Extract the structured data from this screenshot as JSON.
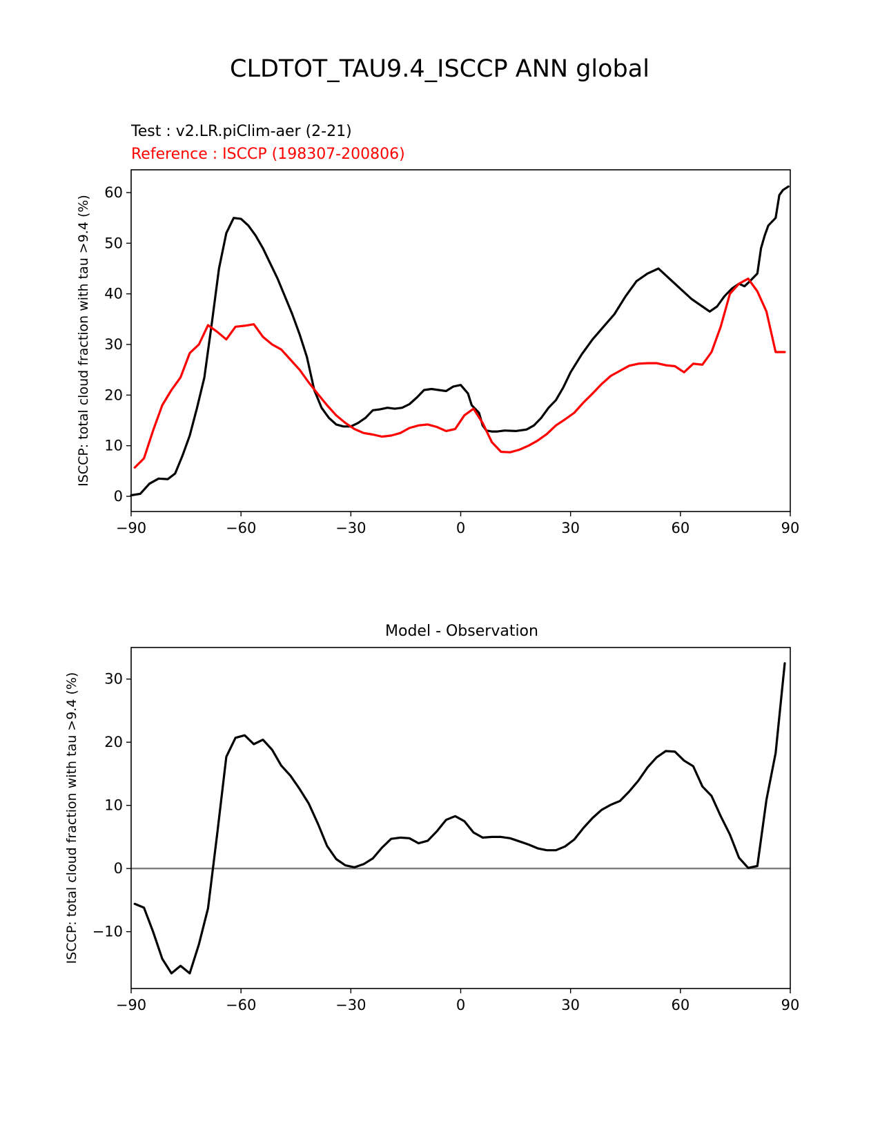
{
  "figure": {
    "title": "CLDTOT_TAU9.4_ISCCP ANN global"
  },
  "chart_data": [
    {
      "type": "line",
      "test_label": "Test : v2.LR.piClim-aer (2-21)",
      "reference_label": "Reference : ISCCP (198307-200806)",
      "title": "",
      "xlabel": "",
      "ylabel": "ISCCP: total cloud fraction with tau >9.4 (%)",
      "xlim": [
        -90,
        90
      ],
      "ylim": [
        -3,
        64.5
      ],
      "xticks": [
        -90,
        -60,
        -30,
        0,
        30,
        60,
        90
      ],
      "xtick_labels": [
        "−90",
        "−60",
        "−30",
        "0",
        "30",
        "60",
        "90"
      ],
      "yticks": [
        0,
        10,
        20,
        30,
        40,
        50,
        60
      ],
      "ytick_labels": [
        "0",
        "10",
        "20",
        "30",
        "40",
        "50",
        "60"
      ],
      "grid": false,
      "colors": {
        "test": "#000000",
        "reference": "#ff0000"
      },
      "series": [
        {
          "key": "test",
          "color": "#000000",
          "x": [
            -90,
            -87.5,
            -85,
            -82.5,
            -80,
            -78,
            -76,
            -74,
            -72,
            -70,
            -68,
            -66,
            -64,
            -62,
            -60,
            -58,
            -56,
            -54,
            -52,
            -50,
            -48,
            -46,
            -44,
            -42,
            -40,
            -38,
            -36,
            -34,
            -32,
            -30,
            -28,
            -26,
            -24,
            -22,
            -20,
            -18,
            -16,
            -14,
            -12,
            -10,
            -8,
            -6,
            -4,
            -2,
            0,
            2,
            3,
            5,
            6,
            7,
            8.5,
            10,
            12,
            15,
            18,
            20,
            22,
            24,
            26,
            28,
            30,
            33,
            36,
            39,
            42,
            45,
            48,
            51,
            54,
            57,
            60,
            63,
            66,
            68,
            70,
            72,
            74,
            76,
            77.5,
            79,
            81,
            82,
            83,
            84,
            86,
            87,
            88,
            89.5
          ],
          "y": [
            0.2,
            0.5,
            2.5,
            3.5,
            3.4,
            4.5,
            8.0,
            12.0,
            17.5,
            23.5,
            34.0,
            45.0,
            52.0,
            55.0,
            54.8,
            53.5,
            51.5,
            49.0,
            46.0,
            43.0,
            39.5,
            36.0,
            32.0,
            27.5,
            21.0,
            17.5,
            15.5,
            14.2,
            13.8,
            13.8,
            14.5,
            15.5,
            17.0,
            17.2,
            17.5,
            17.3,
            17.5,
            18.2,
            19.5,
            21.0,
            21.2,
            21.0,
            20.8,
            21.7,
            22.0,
            20.3,
            18.0,
            16.5,
            14.0,
            13.0,
            12.8,
            12.8,
            13.0,
            12.9,
            13.2,
            14.0,
            15.5,
            17.5,
            19.0,
            21.5,
            24.5,
            28.0,
            31.0,
            33.5,
            36.0,
            39.5,
            42.5,
            44.0,
            45.0,
            43.0,
            41.0,
            39.0,
            37.5,
            36.5,
            37.5,
            39.5,
            41.0,
            42.0,
            41.5,
            42.5,
            44.0,
            49.0,
            51.5,
            53.5,
            55.0,
            59.5,
            60.5,
            61.2
          ]
        },
        {
          "key": "reference",
          "color": "#ff0000",
          "x": [
            -89,
            -86.5,
            -84,
            -81.5,
            -79,
            -76.5,
            -74,
            -71.5,
            -69,
            -66.5,
            -64,
            -61.5,
            -59,
            -56.5,
            -54,
            -51.5,
            -49,
            -46.5,
            -44,
            -41.5,
            -39,
            -36.5,
            -34,
            -31.5,
            -29,
            -26.5,
            -24,
            -21.5,
            -19,
            -16.5,
            -14,
            -11.5,
            -9,
            -6.5,
            -4,
            -1.5,
            1,
            3.5,
            6,
            8.5,
            11,
            13.5,
            16,
            18.5,
            21,
            23.5,
            26,
            28.5,
            31,
            33.5,
            36,
            38.5,
            41,
            43.5,
            46,
            48.5,
            51,
            53.5,
            56,
            58.5,
            61,
            63.5,
            66,
            68.5,
            71,
            73.5,
            76,
            78.5,
            81,
            83.5,
            86,
            88.5
          ],
          "y": [
            5.7,
            7.5,
            13.0,
            18.0,
            21.0,
            23.5,
            28.3,
            30.0,
            33.8,
            32.5,
            31.0,
            33.5,
            33.7,
            34.0,
            31.5,
            30.0,
            29.0,
            27.0,
            25.0,
            22.5,
            20.2,
            18.0,
            16.0,
            14.5,
            13.3,
            12.5,
            12.2,
            11.8,
            12.0,
            12.5,
            13.5,
            14.0,
            14.2,
            13.7,
            12.9,
            13.3,
            16.0,
            17.3,
            14.5,
            10.7,
            8.8,
            8.7,
            9.2,
            10.0,
            11.0,
            12.3,
            14.0,
            15.2,
            16.5,
            18.5,
            20.3,
            22.2,
            23.8,
            24.8,
            25.8,
            26.2,
            26.3,
            26.3,
            25.9,
            25.7,
            24.5,
            26.2,
            26.0,
            28.5,
            33.5,
            40.0,
            42.0,
            43.0,
            40.5,
            36.5,
            28.5,
            28.5
          ]
        }
      ]
    },
    {
      "type": "line",
      "title": "Model - Observation",
      "xlabel": "",
      "ylabel": "ISCCP: total cloud fraction with tau >9.4 (%)",
      "xlim": [
        -90,
        90
      ],
      "ylim": [
        -19,
        35
      ],
      "xticks": [
        -90,
        -60,
        -30,
        0,
        30,
        60,
        90
      ],
      "xtick_labels": [
        "−90",
        "−60",
        "−30",
        "0",
        "30",
        "60",
        "90"
      ],
      "yticks": [
        -10,
        0,
        10,
        20,
        30
      ],
      "ytick_labels": [
        "−10",
        "0",
        "10",
        "20",
        "30"
      ],
      "grid": false,
      "zero_line": 0,
      "colors": {
        "difference": "#000000",
        "zero_line": "#808080"
      },
      "series": [
        {
          "key": "difference",
          "color": "#000000",
          "x": [
            -89,
            -86.5,
            -84,
            -81.5,
            -79,
            -76.5,
            -74,
            -71.5,
            -69,
            -66.5,
            -64,
            -61.5,
            -59,
            -56.5,
            -54,
            -51.5,
            -49,
            -46.5,
            -44,
            -41.5,
            -39,
            -36.5,
            -34,
            -31.5,
            -29,
            -26.5,
            -24,
            -21.5,
            -19,
            -16.5,
            -14,
            -11.5,
            -9,
            -6.5,
            -4,
            -1.5,
            1,
            3.5,
            6,
            8.5,
            11,
            13.5,
            16,
            18.5,
            21,
            23.5,
            26,
            28.5,
            31,
            33.5,
            36,
            38.5,
            41,
            43.5,
            46,
            48.5,
            51,
            53.5,
            56,
            58.5,
            61,
            63.5,
            66,
            68.5,
            71,
            73.5,
            76,
            78.5,
            81,
            83.5,
            86,
            88.5
          ],
          "y": [
            -5.6,
            -6.2,
            -10.0,
            -14.3,
            -16.6,
            -15.4,
            -16.6,
            -12.0,
            -6.3,
            5.5,
            17.7,
            20.7,
            21.1,
            19.7,
            20.4,
            18.8,
            16.3,
            14.7,
            12.6,
            10.3,
            7.1,
            3.6,
            1.5,
            0.5,
            0.2,
            0.7,
            1.6,
            3.3,
            4.7,
            4.9,
            4.8,
            4.0,
            4.4,
            5.9,
            7.7,
            8.3,
            7.5,
            5.7,
            4.9,
            5.0,
            5.0,
            4.8,
            4.3,
            3.8,
            3.2,
            2.9,
            2.9,
            3.5,
            4.6,
            6.4,
            8.0,
            9.3,
            10.1,
            10.7,
            12.2,
            13.9,
            16.0,
            17.6,
            18.6,
            18.5,
            17.1,
            16.2,
            13.0,
            11.5,
            8.3,
            5.4,
            1.7,
            0.1,
            0.4,
            10.9,
            18.3,
            32.5
          ]
        }
      ]
    }
  ]
}
